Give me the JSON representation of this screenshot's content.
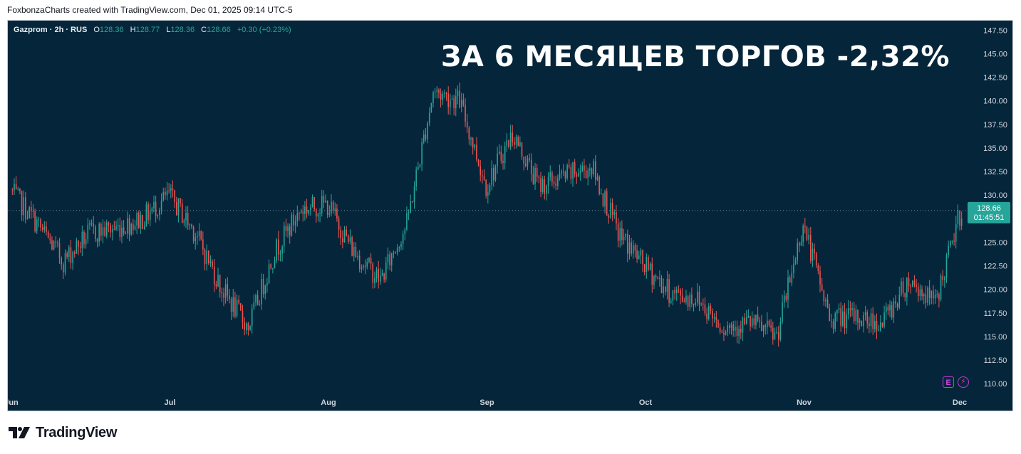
{
  "header": {
    "credit": "FoxbonzaCharts created with TradingView.com, Dec 01, 2025 09:14 UTC-5"
  },
  "legend": {
    "symbol": "Gazprom · 2h · RUS",
    "o_key": "O",
    "o_val": "128.36",
    "h_key": "H",
    "h_val": "128.77",
    "l_key": "L",
    "l_val": "128.36",
    "c_key": "C",
    "c_val": "128.66",
    "change": "+0.30 (+0.23%)"
  },
  "headline": "ЗА 6 МЕСЯЦЕВ ТОРГОВ -2,32%",
  "footer": {
    "brand": "TradingView"
  },
  "badges": {
    "earnings": "E",
    "dividend": "⚡"
  },
  "colors": {
    "background": "#05263a",
    "up": "#26a69a",
    "down": "#ef5350",
    "price_tag": "#26a69a",
    "axis_text": "#d1d4dc"
  },
  "chart_data": {
    "type": "candlestick",
    "title": "",
    "ylim": [
      108.5,
      148.5
    ],
    "y_ticks": [
      "147.50",
      "145.00",
      "142.50",
      "140.00",
      "137.50",
      "135.00",
      "132.50",
      "130.00",
      "127.50",
      "125.00",
      "122.50",
      "120.00",
      "117.50",
      "115.00",
      "112.50",
      "110.00"
    ],
    "x_ticks": [
      "Jun",
      "Jul",
      "Aug",
      "Sep",
      "Oct",
      "Nov",
      "Dec"
    ],
    "x": [
      "Jun 1",
      "Jun 5",
      "Jun 10",
      "Jun 15",
      "Jun 20",
      "Jun 25",
      "Jul 1",
      "Jul 5",
      "Jul 10",
      "Jul 15",
      "Jul 20",
      "Jul 25",
      "Aug 1",
      "Aug 5",
      "Aug 10",
      "Aug 15",
      "Aug 20",
      "Aug 25",
      "Sep 1",
      "Sep 5",
      "Sep 10",
      "Sep 15",
      "Sep 20",
      "Sep 25",
      "Oct 1",
      "Oct 5",
      "Oct 10",
      "Oct 15",
      "Oct 20",
      "Oct 25",
      "Nov 1",
      "Nov 5",
      "Nov 10",
      "Nov 15",
      "Nov 20",
      "Nov 25",
      "Dec 1"
    ],
    "close": [
      130.5,
      127.0,
      123.0,
      126.0,
      126.5,
      127.5,
      130.0,
      126.0,
      120.0,
      116.0,
      124.0,
      128.5,
      129.0,
      124.0,
      121.0,
      127.0,
      141.0,
      140.0,
      131.0,
      136.5,
      131.0,
      132.0,
      133.0,
      126.0,
      122.5,
      119.5,
      119.0,
      116.0,
      116.5,
      115.0,
      127.0,
      117.0,
      117.0,
      116.5,
      121.0,
      118.5,
      128.66
    ],
    "last_price": "128.66",
    "countdown": "01:45:51",
    "reference_line": 128.36
  }
}
